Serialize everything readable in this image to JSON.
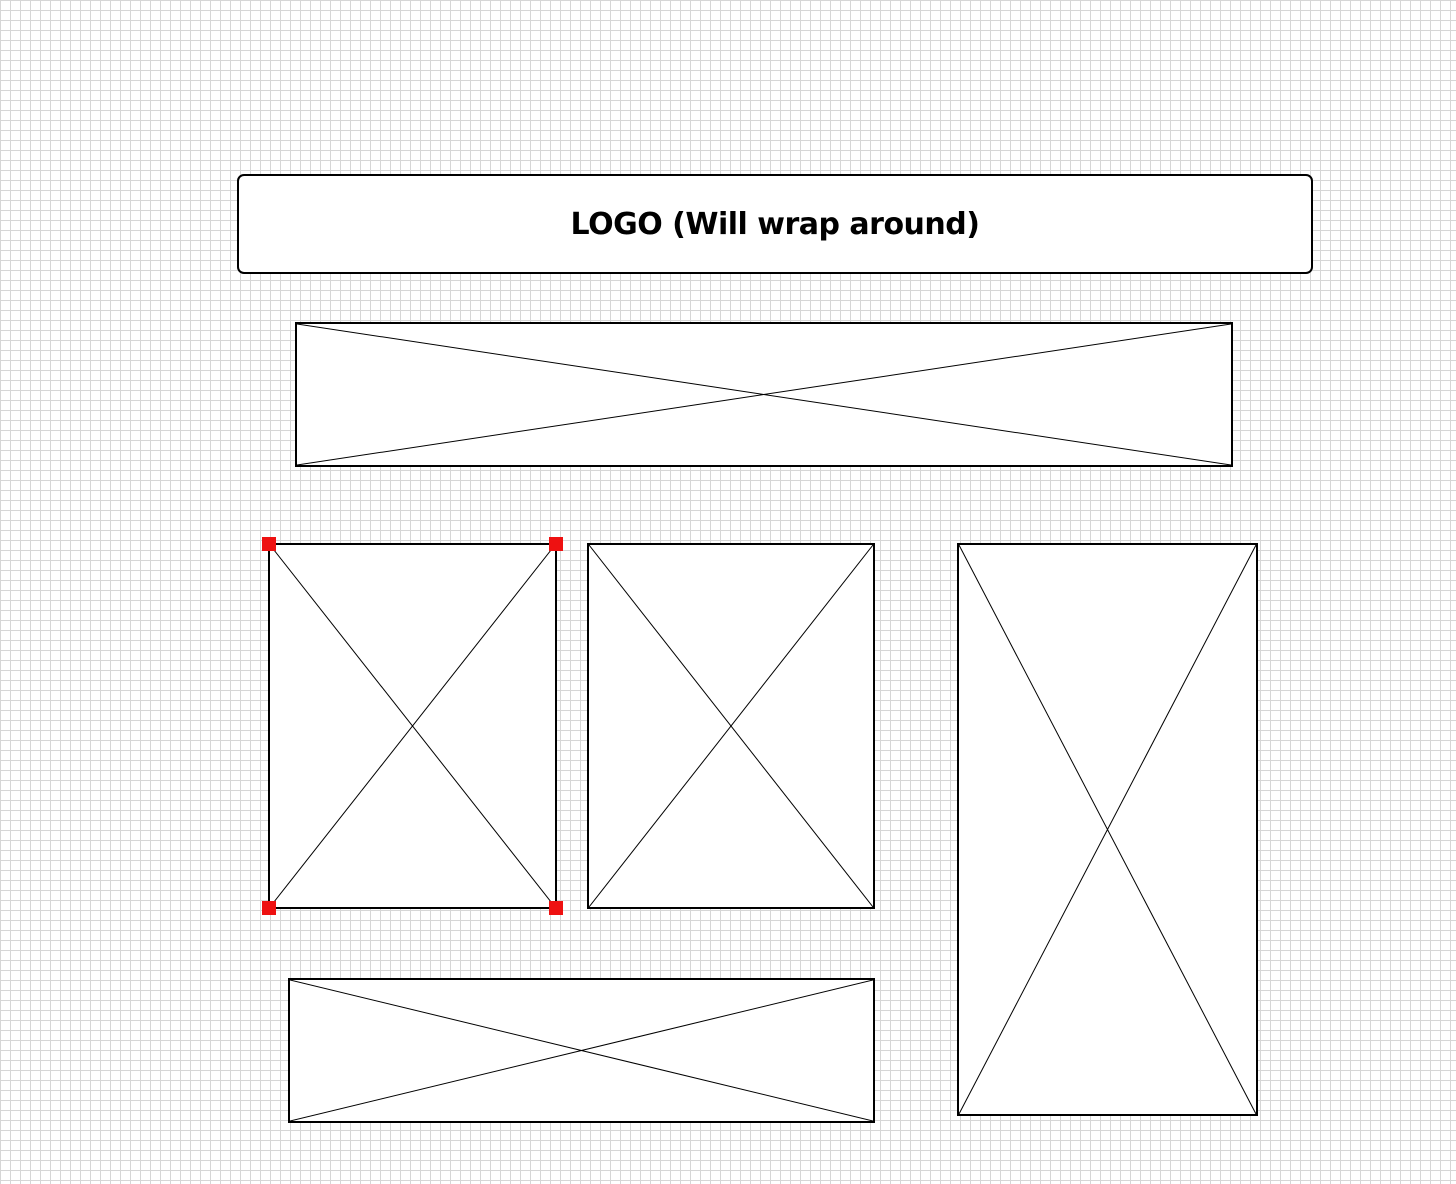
{
  "canvas": {
    "grid_color": "#d6d6d6",
    "background_color": "#ffffff",
    "shape_stroke_color": "#000000",
    "selection_handle_color": "#ee1111"
  },
  "logo": {
    "label": "LOGO (Will wrap around)"
  },
  "placeholders": [
    {
      "name": "banner-image-placeholder",
      "icon": "image-placeholder-icon",
      "selected": false
    },
    {
      "name": "left-image-placeholder",
      "icon": "image-placeholder-icon",
      "selected": true
    },
    {
      "name": "middle-image-placeholder",
      "icon": "image-placeholder-icon",
      "selected": false
    },
    {
      "name": "right-image-placeholder",
      "icon": "image-placeholder-icon",
      "selected": false
    },
    {
      "name": "bottom-image-placeholder",
      "icon": "image-placeholder-icon",
      "selected": false
    }
  ]
}
